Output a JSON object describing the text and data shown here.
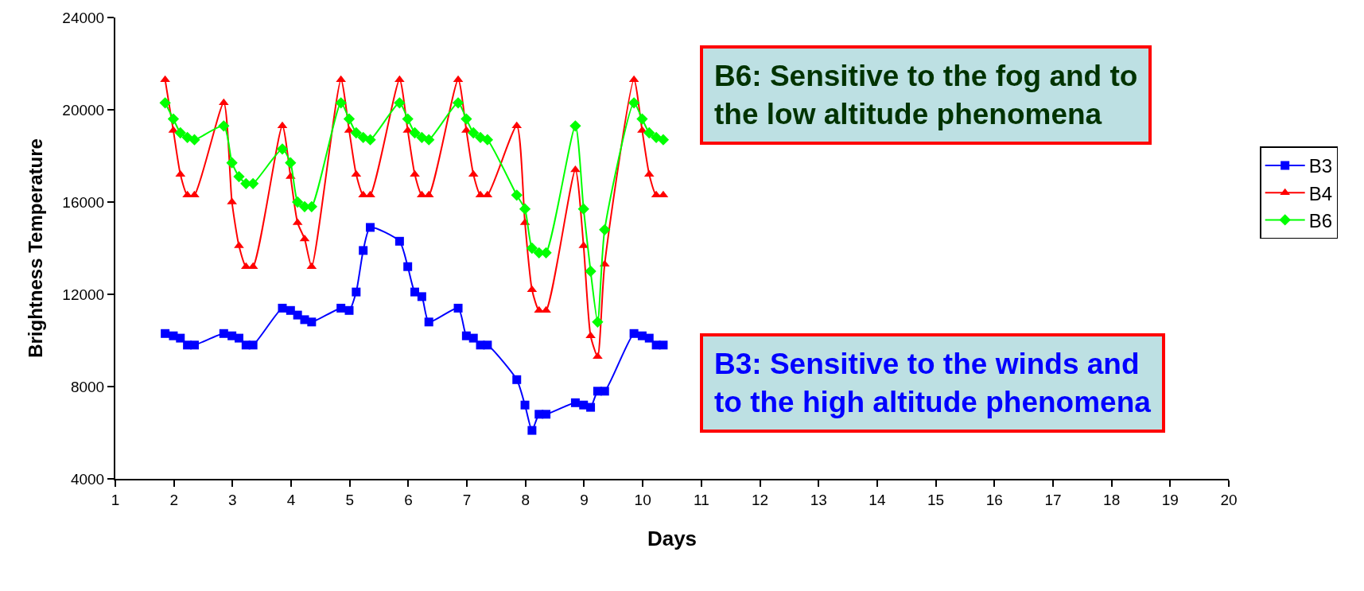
{
  "chart_data": {
    "type": "line",
    "xlabel": "Days",
    "ylabel": "Brightness Temperature",
    "x": [
      1.85,
      1.99,
      2.11,
      2.23,
      2.35,
      2.85,
      2.99,
      3.11,
      3.23,
      3.35,
      3.85,
      3.99,
      4.11,
      4.23,
      4.35,
      4.85,
      4.99,
      5.11,
      5.23,
      5.35,
      5.85,
      5.99,
      6.11,
      6.23,
      6.35,
      6.85,
      6.99,
      7.11,
      7.23,
      7.35,
      7.85,
      7.99,
      8.11,
      8.23,
      8.35,
      8.85,
      8.99,
      9.11,
      9.23,
      9.35,
      9.85,
      9.99,
      10.11,
      10.23,
      10.35
    ],
    "series": [
      {
        "name": "B3",
        "color": "#0000ff",
        "marker": "square",
        "values": [
          10300,
          10200,
          10100,
          9800,
          9800,
          10300,
          10200,
          10100,
          9800,
          9800,
          11400,
          11300,
          11100,
          10900,
          10800,
          11400,
          11300,
          12100,
          13900,
          14900,
          14300,
          13200,
          12100,
          11900,
          10800,
          11400,
          10200,
          10100,
          9800,
          9800,
          8300,
          7200,
          6100,
          6800,
          6800,
          7300,
          7200,
          7100,
          7800,
          7800,
          10300,
          10200,
          10100,
          9800,
          9800
        ]
      },
      {
        "name": "B4",
        "color": "#ff0000",
        "marker": "triangle",
        "values": [
          21300,
          19100,
          17200,
          16300,
          16300,
          20300,
          16000,
          14100,
          13200,
          13200,
          19300,
          17100,
          15100,
          14400,
          13200,
          21300,
          19100,
          17200,
          16300,
          16300,
          21300,
          19100,
          17200,
          16300,
          16300,
          21300,
          19100,
          17200,
          16300,
          16300,
          19300,
          15100,
          12200,
          11300,
          11300,
          17400,
          14100,
          10200,
          9300,
          13300,
          21300,
          19100,
          17200,
          16300,
          16300
        ]
      },
      {
        "name": "B6",
        "color": "#00ff00",
        "marker": "diamond",
        "values": [
          20300,
          19600,
          19000,
          18800,
          18700,
          19300,
          17700,
          17100,
          16800,
          16800,
          18300,
          17700,
          16000,
          15800,
          15800,
          20300,
          19600,
          19000,
          18800,
          18700,
          20300,
          19600,
          19000,
          18800,
          18700,
          20300,
          19600,
          19000,
          18800,
          18700,
          16300,
          15700,
          14000,
          13800,
          13800,
          19300,
          15700,
          13000,
          10800,
          14800,
          20300,
          19600,
          19000,
          18800,
          18700
        ]
      }
    ],
    "xlim": [
      1,
      20
    ],
    "xticks": [
      1,
      2,
      3,
      4,
      5,
      6,
      7,
      8,
      9,
      10,
      11,
      12,
      13,
      14,
      15,
      16,
      17,
      18,
      19,
      20
    ],
    "ylim": [
      4000,
      24000
    ],
    "yticks": [
      4000,
      8000,
      12000,
      16000,
      20000,
      24000
    ],
    "legend": "right",
    "line_style": "solid",
    "annotations": [
      "B6: Sensitive to the fog and to the low altitude phenomena",
      "B3: Sensitive to the winds and to the high altitude phenomena"
    ]
  }
}
